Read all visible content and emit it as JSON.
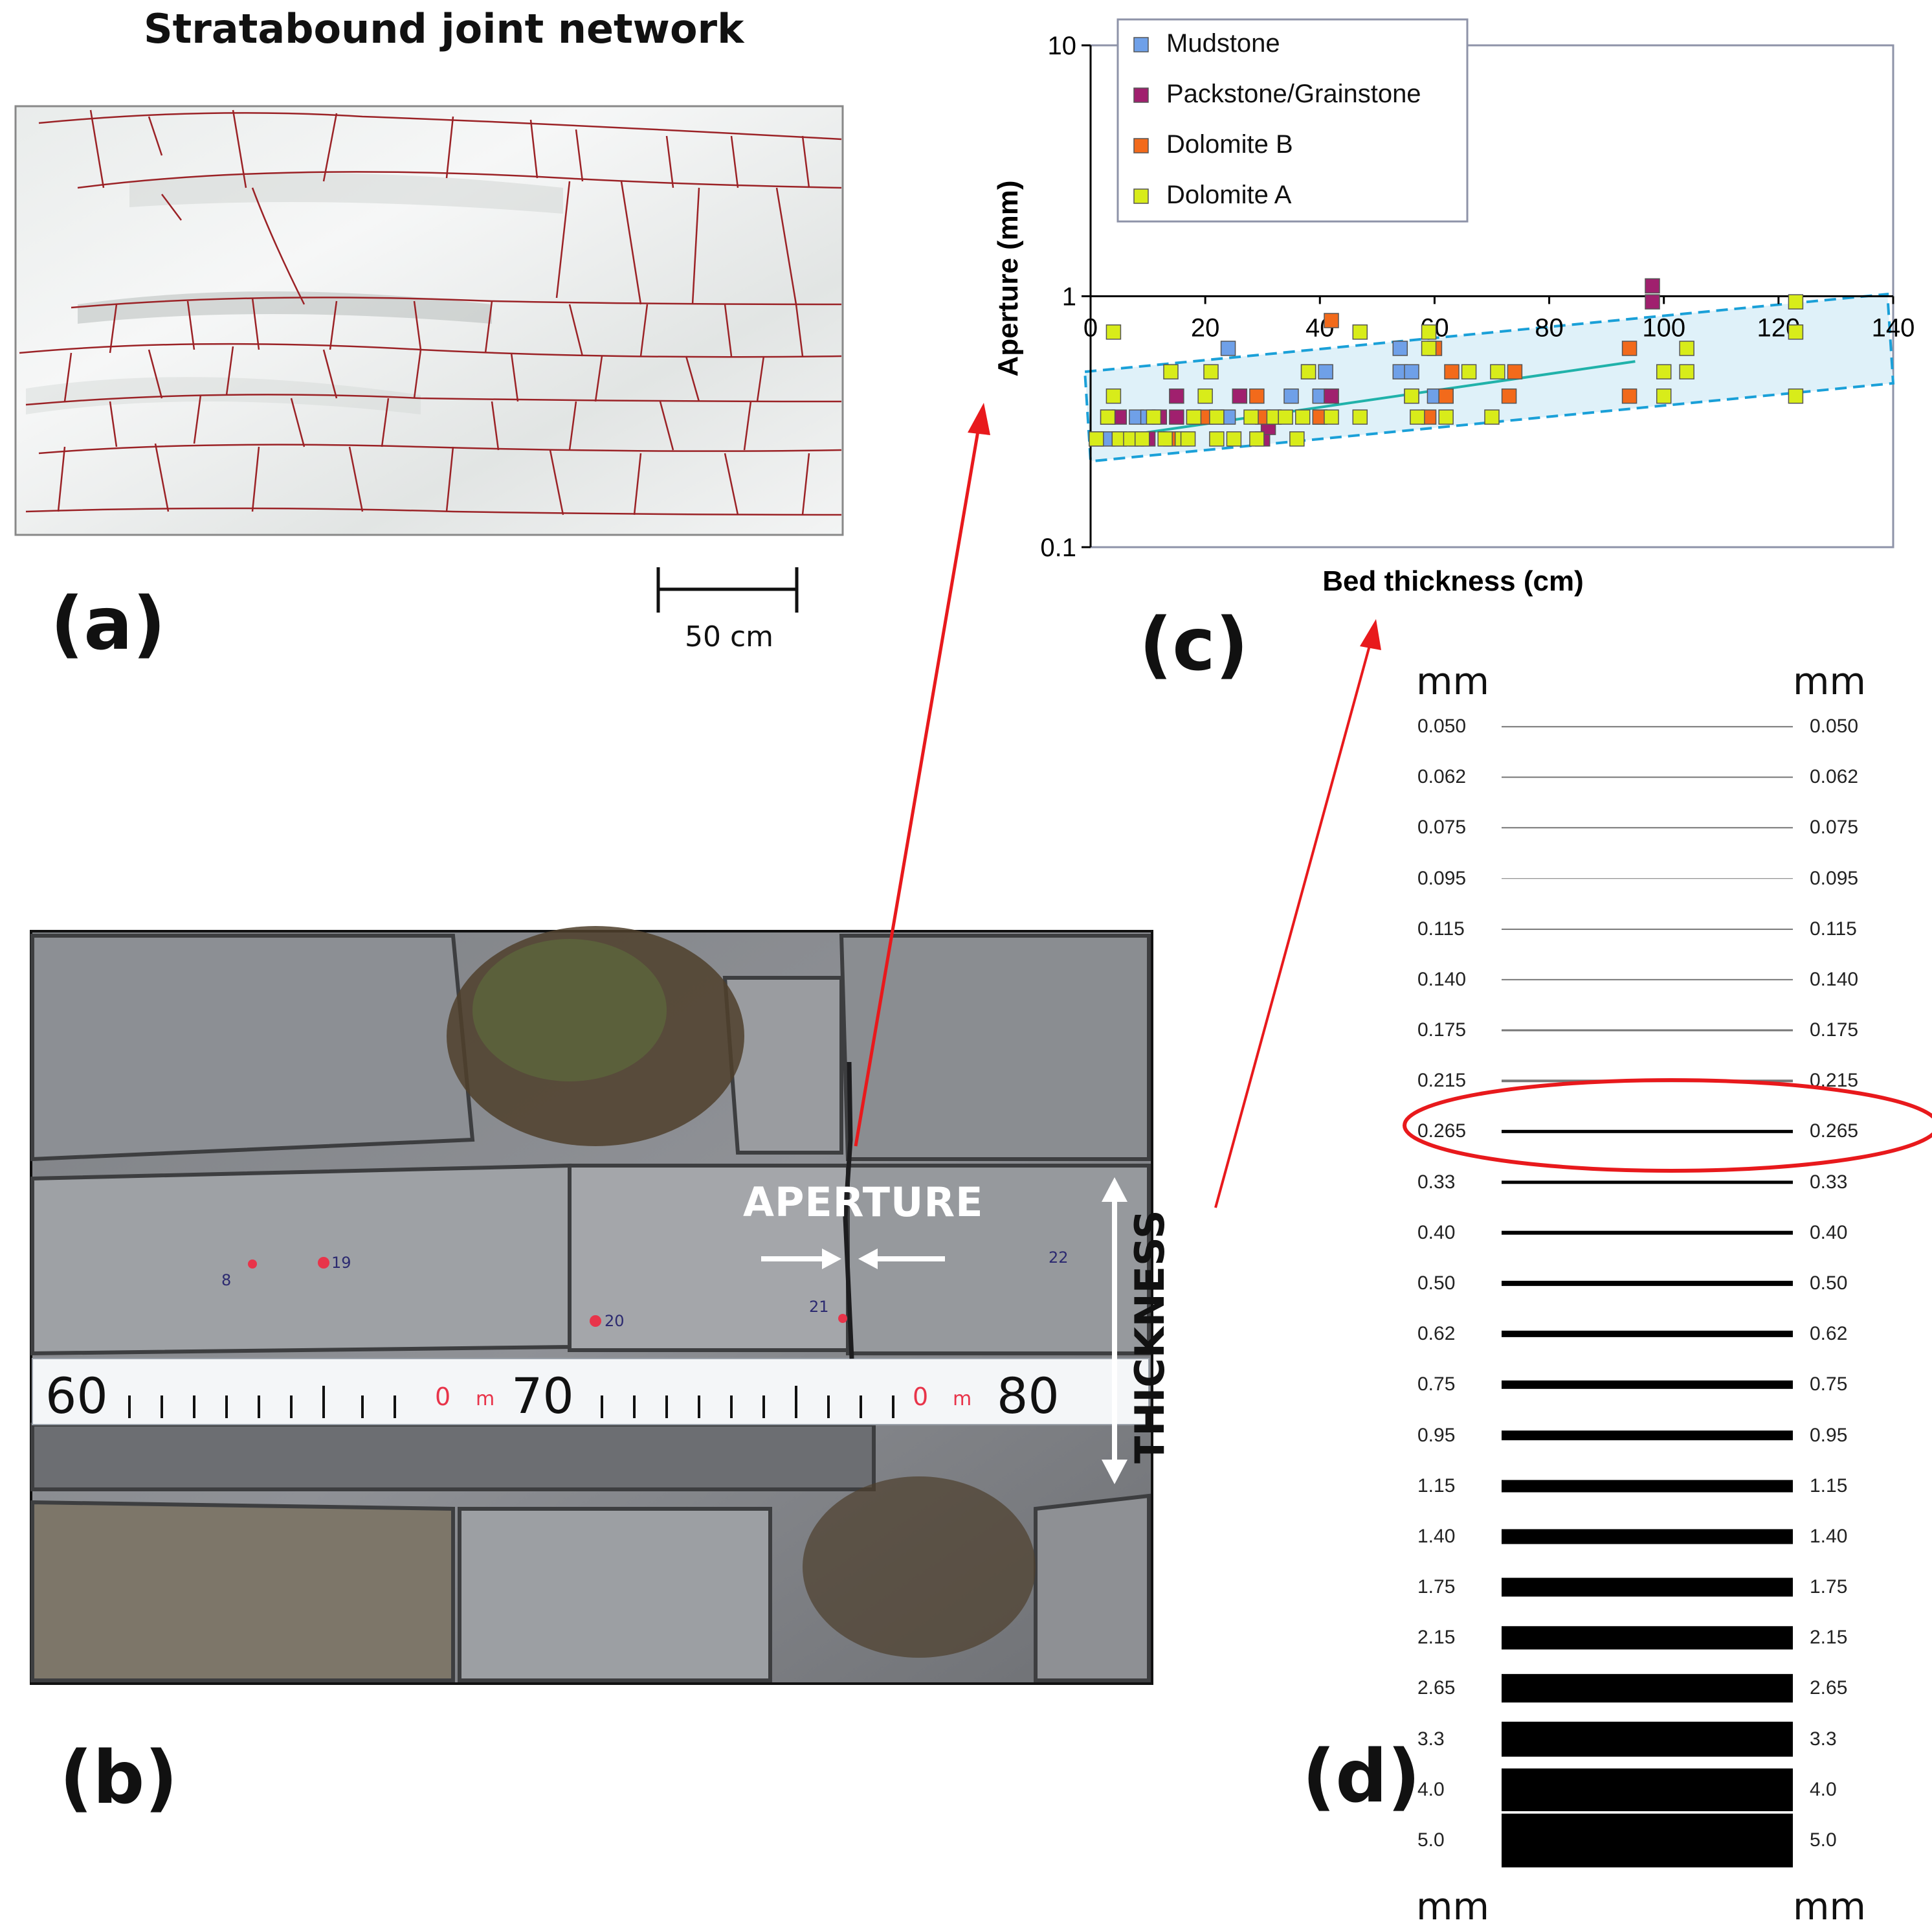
{
  "panel_a": {
    "title": "Stratabound joint network",
    "letter": "(a)",
    "scale_bar_label": "50 cm"
  },
  "panel_b": {
    "letter": "(b)",
    "aperture_label": "APERTURE",
    "thickness_label": "THICKNESS",
    "tape_numbers": [
      "60",
      "70",
      "80"
    ],
    "tape_unit_marks": [
      "0",
      "m",
      "0",
      "m"
    ],
    "sample_marks": [
      "8",
      "19",
      "20",
      "21",
      "22"
    ]
  },
  "panel_c": {
    "letter": "(c)"
  },
  "panel_d": {
    "letter": "(d)",
    "unit_top_left": "mm",
    "unit_top_right": "mm",
    "unit_bottom_left": "mm",
    "unit_bottom_right": "mm",
    "gauge_values": [
      "0.050",
      "0.062",
      "0.075",
      "0.095",
      "0.115",
      "0.140",
      "0.175",
      "0.215",
      "0.265",
      "0.33",
      "0.40",
      "0.50",
      "0.62",
      "0.75",
      "0.95",
      "1.15",
      "1.40",
      "1.75",
      "2.15",
      "2.65",
      "3.3",
      "4.0",
      "5.0"
    ],
    "highlighted_value": "0.265",
    "highlight_color": "#e8191c"
  },
  "colors": {
    "arrow_red": "#e8191c",
    "joint_line": "#9b2226",
    "trend_box": "#1aa0d8",
    "trend_line": "#20b2aa"
  },
  "chart_data": {
    "type": "scatter",
    "xlabel": "Bed thickness (cm)",
    "ylabel": "Aperture (mm)",
    "xlim": [
      0,
      140
    ],
    "ylim": [
      0.1,
      10
    ],
    "y_scale": "log",
    "x_ticks": [
      "0",
      "20",
      "40",
      "60",
      "80",
      "100",
      "120",
      "140"
    ],
    "y_ticks": [
      "0.1",
      "1",
      "10"
    ],
    "legend_position": "top-left",
    "series": [
      {
        "name": "Mudstone",
        "color": "#6fa0e8",
        "points": [
          [
            1,
            0.27
          ],
          [
            3,
            0.27
          ],
          [
            5,
            0.27
          ],
          [
            8,
            0.33
          ],
          [
            10,
            0.33
          ],
          [
            24,
            0.33
          ],
          [
            24,
            0.62
          ],
          [
            35,
            0.4
          ],
          [
            38,
            0.5
          ],
          [
            40,
            0.4
          ],
          [
            42,
            0.4
          ],
          [
            41,
            0.5
          ],
          [
            54,
            0.5
          ],
          [
            54,
            0.62
          ],
          [
            56,
            0.4
          ],
          [
            56,
            0.5
          ],
          [
            60,
            0.4
          ]
        ]
      },
      {
        "name": "Packstone/Grainstone",
        "color": "#a0206e",
        "points": [
          [
            5,
            0.33
          ],
          [
            8,
            0.27
          ],
          [
            10,
            0.27
          ],
          [
            12,
            0.33
          ],
          [
            15,
            0.33
          ],
          [
            18,
            0.33
          ],
          [
            15,
            0.4
          ],
          [
            26,
            0.4
          ],
          [
            30,
            0.27
          ],
          [
            31,
            0.3
          ],
          [
            32,
            0.33
          ],
          [
            40,
            0.33
          ],
          [
            42,
            0.4
          ],
          [
            62,
            0.4
          ],
          [
            98,
            1.1
          ],
          [
            98,
            0.95
          ]
        ]
      },
      {
        "name": "Dolomite B",
        "color": "#f26a1b",
        "points": [
          [
            3,
            0.33
          ],
          [
            14,
            0.27
          ],
          [
            20,
            0.33
          ],
          [
            22,
            0.33
          ],
          [
            29,
            0.4
          ],
          [
            30,
            0.33
          ],
          [
            40,
            0.33
          ],
          [
            42,
            0.8
          ],
          [
            59,
            0.33
          ],
          [
            60,
            0.62
          ],
          [
            62,
            0.4
          ],
          [
            63,
            0.5
          ],
          [
            73,
            0.4
          ],
          [
            74,
            0.5
          ],
          [
            94,
            0.62
          ],
          [
            94,
            0.4
          ]
        ]
      },
      {
        "name": "Dolomite A",
        "color": "#d8ec1a",
        "points": [
          [
            1,
            0.27
          ],
          [
            3,
            0.33
          ],
          [
            4,
            0.4
          ],
          [
            4,
            0.72
          ],
          [
            5,
            0.27
          ],
          [
            7,
            0.27
          ],
          [
            9,
            0.27
          ],
          [
            11,
            0.33
          ],
          [
            13,
            0.27
          ],
          [
            14,
            0.5
          ],
          [
            16,
            0.27
          ],
          [
            17,
            0.27
          ],
          [
            18,
            0.33
          ],
          [
            20,
            0.4
          ],
          [
            21,
            0.5
          ],
          [
            22,
            0.33
          ],
          [
            22,
            0.27
          ],
          [
            25,
            0.27
          ],
          [
            28,
            0.33
          ],
          [
            29,
            0.27
          ],
          [
            32,
            0.33
          ],
          [
            34,
            0.33
          ],
          [
            36,
            0.27
          ],
          [
            37,
            0.33
          ],
          [
            38,
            0.5
          ],
          [
            42,
            0.33
          ],
          [
            47,
            0.72
          ],
          [
            47,
            0.33
          ],
          [
            56,
            0.4
          ],
          [
            57,
            0.33
          ],
          [
            59,
            0.62
          ],
          [
            59,
            0.72
          ],
          [
            62,
            0.33
          ],
          [
            66,
            0.5
          ],
          [
            70,
            0.33
          ],
          [
            71,
            0.5
          ],
          [
            100,
            0.4
          ],
          [
            100,
            0.5
          ],
          [
            104,
            0.5
          ],
          [
            104,
            0.62
          ],
          [
            123,
            0.95
          ],
          [
            123,
            0.4
          ],
          [
            123,
            0.72
          ]
        ]
      }
    ],
    "trend_line": [
      [
        2,
        0.27
      ],
      [
        95,
        0.55
      ]
    ]
  }
}
